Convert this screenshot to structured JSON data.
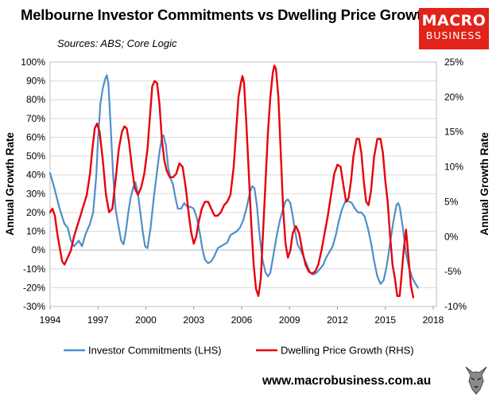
{
  "header": {
    "title": "Melbourne Investor Commitments vs Dwelling Price Growth",
    "subtitle": "Sources: ABS; Core Logic",
    "logo_line1": "MACRO",
    "logo_line2": "BUSINESS"
  },
  "footer": {
    "url": "www.macrobusiness.com.au",
    "logo_icon": "wolf-logo-icon"
  },
  "colors": {
    "investor": "#4f8fc7",
    "price": "#e8000b",
    "logo_bg": "#e2231a",
    "grid": "#d9d9d9"
  },
  "chart_data": {
    "type": "line",
    "title": "Melbourne Investor Commitments vs Dwelling Price Growth",
    "ylabel_left": "Annual Growth Rate",
    "ylabel_right": "Annual Growth Rate",
    "xlim": [
      1994,
      2018.2
    ],
    "ylim_left": [
      -30,
      100
    ],
    "ylim_right": [
      -10,
      25
    ],
    "grid": "horizontal",
    "legend": "bottom",
    "x_ticks": [
      "1994",
      "1997",
      "2000",
      "2003",
      "2006",
      "2009",
      "2012",
      "2015",
      "2018"
    ],
    "y_left_ticks": [
      "100%",
      "90%",
      "80%",
      "70%",
      "60%",
      "50%",
      "40%",
      "30%",
      "20%",
      "10%",
      "0%",
      "-10%",
      "-20%",
      "-30%"
    ],
    "y_right_ticks": [
      "25%",
      "20%",
      "15%",
      "10%",
      "5%",
      "0%",
      "-5%",
      "-10%"
    ],
    "series": [
      {
        "name": "Investor Commitments (LHS)",
        "axis": "left",
        "points": [
          [
            1994.0,
            41
          ],
          [
            1994.3,
            32
          ],
          [
            1994.6,
            22
          ],
          [
            1994.9,
            14
          ],
          [
            1995.1,
            12
          ],
          [
            1995.3,
            5
          ],
          [
            1995.5,
            2
          ],
          [
            1995.8,
            5
          ],
          [
            1996.0,
            2
          ],
          [
            1996.2,
            8
          ],
          [
            1996.5,
            14
          ],
          [
            1996.7,
            20
          ],
          [
            1996.9,
            40
          ],
          [
            1997.0,
            58
          ],
          [
            1997.15,
            78
          ],
          [
            1997.3,
            86
          ],
          [
            1997.45,
            91
          ],
          [
            1997.55,
            93
          ],
          [
            1997.65,
            89
          ],
          [
            1997.8,
            65
          ],
          [
            1997.95,
            40
          ],
          [
            1998.1,
            22
          ],
          [
            1998.3,
            12
          ],
          [
            1998.45,
            5
          ],
          [
            1998.6,
            3
          ],
          [
            1998.75,
            10
          ],
          [
            1998.9,
            20
          ],
          [
            1999.05,
            28
          ],
          [
            1999.2,
            33
          ],
          [
            1999.35,
            36
          ],
          [
            1999.5,
            30
          ],
          [
            1999.65,
            20
          ],
          [
            1999.8,
            10
          ],
          [
            1999.95,
            2
          ],
          [
            2000.1,
            1
          ],
          [
            2000.3,
            12
          ],
          [
            2000.5,
            28
          ],
          [
            2000.7,
            42
          ],
          [
            2000.85,
            52
          ],
          [
            2001.0,
            60
          ],
          [
            2001.1,
            61
          ],
          [
            2001.25,
            56
          ],
          [
            2001.4,
            44
          ],
          [
            2001.55,
            38
          ],
          [
            2001.7,
            35
          ],
          [
            2001.85,
            28
          ],
          [
            2002.0,
            22
          ],
          [
            2002.2,
            22
          ],
          [
            2002.4,
            25
          ],
          [
            2002.6,
            23
          ],
          [
            2002.8,
            23
          ],
          [
            2003.0,
            22
          ],
          [
            2003.2,
            17
          ],
          [
            2003.4,
            8
          ],
          [
            2003.55,
            0
          ],
          [
            2003.7,
            -5
          ],
          [
            2003.9,
            -7
          ],
          [
            2004.1,
            -6
          ],
          [
            2004.3,
            -3
          ],
          [
            2004.5,
            1
          ],
          [
            2004.7,
            2
          ],
          [
            2004.9,
            3
          ],
          [
            2005.1,
            4
          ],
          [
            2005.3,
            8
          ],
          [
            2005.5,
            9
          ],
          [
            2005.7,
            10
          ],
          [
            2005.9,
            12
          ],
          [
            2006.1,
            16
          ],
          [
            2006.3,
            22
          ],
          [
            2006.5,
            30
          ],
          [
            2006.65,
            34
          ],
          [
            2006.8,
            33
          ],
          [
            2006.95,
            24
          ],
          [
            2007.1,
            10
          ],
          [
            2007.3,
            -5
          ],
          [
            2007.5,
            -12
          ],
          [
            2007.65,
            -14
          ],
          [
            2007.8,
            -12
          ],
          [
            2008.0,
            -2
          ],
          [
            2008.2,
            8
          ],
          [
            2008.4,
            16
          ],
          [
            2008.6,
            22
          ],
          [
            2008.75,
            26
          ],
          [
            2008.9,
            27
          ],
          [
            2009.05,
            25
          ],
          [
            2009.2,
            18
          ],
          [
            2009.35,
            10
          ],
          [
            2009.5,
            3
          ],
          [
            2009.7,
            0
          ],
          [
            2009.9,
            -4
          ],
          [
            2010.1,
            -8
          ],
          [
            2010.3,
            -12
          ],
          [
            2010.5,
            -13
          ],
          [
            2010.7,
            -12
          ],
          [
            2010.9,
            -10
          ],
          [
            2011.1,
            -8
          ],
          [
            2011.3,
            -4
          ],
          [
            2011.5,
            -1
          ],
          [
            2011.7,
            2
          ],
          [
            2011.9,
            8
          ],
          [
            2012.1,
            16
          ],
          [
            2012.3,
            22
          ],
          [
            2012.5,
            26
          ],
          [
            2012.7,
            26
          ],
          [
            2012.9,
            25
          ],
          [
            2013.1,
            22
          ],
          [
            2013.3,
            20
          ],
          [
            2013.5,
            20
          ],
          [
            2013.7,
            18
          ],
          [
            2013.9,
            12
          ],
          [
            2014.1,
            4
          ],
          [
            2014.3,
            -6
          ],
          [
            2014.5,
            -14
          ],
          [
            2014.7,
            -18
          ],
          [
            2014.9,
            -16
          ],
          [
            2015.1,
            -8
          ],
          [
            2015.3,
            4
          ],
          [
            2015.5,
            15
          ],
          [
            2015.7,
            24
          ],
          [
            2015.8,
            25
          ],
          [
            2015.9,
            23
          ],
          [
            2016.1,
            12
          ],
          [
            2016.3,
            -2
          ],
          [
            2016.5,
            -10
          ],
          [
            2016.7,
            -15
          ],
          [
            2016.9,
            -18
          ],
          [
            2017.05,
            -20
          ]
        ]
      },
      {
        "name": "Dwelling Price Growth (RHS)",
        "axis": "right",
        "points": [
          [
            1994.0,
            3.5
          ],
          [
            1994.15,
            4.0
          ],
          [
            1994.3,
            3.0
          ],
          [
            1994.45,
            0.5
          ],
          [
            1994.6,
            -1.5
          ],
          [
            1994.75,
            -3.5
          ],
          [
            1994.9,
            -4.0
          ],
          [
            1995.1,
            -3.0
          ],
          [
            1995.3,
            -2.0
          ],
          [
            1995.5,
            0.0
          ],
          [
            1995.7,
            1.5
          ],
          [
            1995.9,
            3.0
          ],
          [
            1996.1,
            4.5
          ],
          [
            1996.3,
            6.0
          ],
          [
            1996.5,
            9.0
          ],
          [
            1996.65,
            12.5
          ],
          [
            1996.8,
            15.5
          ],
          [
            1996.95,
            16.2
          ],
          [
            1997.1,
            15.0
          ],
          [
            1997.3,
            11.0
          ],
          [
            1997.5,
            6.0
          ],
          [
            1997.7,
            3.5
          ],
          [
            1997.9,
            4.0
          ],
          [
            1998.1,
            8.0
          ],
          [
            1998.3,
            12.5
          ],
          [
            1998.5,
            15.0
          ],
          [
            1998.65,
            15.8
          ],
          [
            1998.8,
            15.5
          ],
          [
            1998.95,
            13.5
          ],
          [
            1999.1,
            10.5
          ],
          [
            1999.3,
            7.0
          ],
          [
            1999.5,
            6.0
          ],
          [
            1999.7,
            7.0
          ],
          [
            1999.9,
            9.0
          ],
          [
            2000.1,
            12.5
          ],
          [
            2000.25,
            17.0
          ],
          [
            2000.4,
            21.5
          ],
          [
            2000.55,
            22.3
          ],
          [
            2000.7,
            22.0
          ],
          [
            2000.85,
            19.0
          ],
          [
            2001.0,
            14.0
          ],
          [
            2001.15,
            11.0
          ],
          [
            2001.3,
            9.5
          ],
          [
            2001.5,
            8.5
          ],
          [
            2001.7,
            8.5
          ],
          [
            2001.9,
            9.0
          ],
          [
            2002.1,
            10.5
          ],
          [
            2002.3,
            10.0
          ],
          [
            2002.5,
            7.0
          ],
          [
            2002.7,
            3.0
          ],
          [
            2002.85,
            0.5
          ],
          [
            2003.0,
            -1.0
          ],
          [
            2003.15,
            0.0
          ],
          [
            2003.3,
            2.0
          ],
          [
            2003.5,
            4.0
          ],
          [
            2003.7,
            5.0
          ],
          [
            2003.9,
            5.0
          ],
          [
            2004.1,
            4.0
          ],
          [
            2004.3,
            3.0
          ],
          [
            2004.5,
            3.0
          ],
          [
            2004.7,
            3.5
          ],
          [
            2004.9,
            4.5
          ],
          [
            2005.1,
            5.0
          ],
          [
            2005.3,
            6.0
          ],
          [
            2005.5,
            10.0
          ],
          [
            2005.65,
            15.0
          ],
          [
            2005.8,
            20.0
          ],
          [
            2005.95,
            22.0
          ],
          [
            2006.05,
            23.0
          ],
          [
            2006.15,
            22.0
          ],
          [
            2006.3,
            16.0
          ],
          [
            2006.45,
            9.0
          ],
          [
            2006.6,
            2.0
          ],
          [
            2006.75,
            -4.0
          ],
          [
            2006.9,
            -7.5
          ],
          [
            2007.05,
            -8.5
          ],
          [
            2007.2,
            -6.0
          ],
          [
            2007.35,
            1.0
          ],
          [
            2007.5,
            8.0
          ],
          [
            2007.65,
            15.0
          ],
          [
            2007.8,
            20.0
          ],
          [
            2007.95,
            23.5
          ],
          [
            2008.05,
            24.5
          ],
          [
            2008.15,
            24.0
          ],
          [
            2008.3,
            20.0
          ],
          [
            2008.45,
            12.0
          ],
          [
            2008.6,
            4.0
          ],
          [
            2008.75,
            -1.0
          ],
          [
            2008.9,
            -3.0
          ],
          [
            2009.05,
            -2.0
          ],
          [
            2009.2,
            0.5
          ],
          [
            2009.4,
            1.5
          ],
          [
            2009.6,
            0.5
          ],
          [
            2009.8,
            -2.0
          ],
          [
            2010.0,
            -4.0
          ],
          [
            2010.2,
            -5.0
          ],
          [
            2010.4,
            -5.3
          ],
          [
            2010.6,
            -5.0
          ],
          [
            2010.8,
            -4.0
          ],
          [
            2011.0,
            -2.0
          ],
          [
            2011.2,
            0.5
          ],
          [
            2011.4,
            3.0
          ],
          [
            2011.6,
            6.0
          ],
          [
            2011.8,
            9.0
          ],
          [
            2012.0,
            10.3
          ],
          [
            2012.2,
            10.0
          ],
          [
            2012.4,
            7.0
          ],
          [
            2012.55,
            5.0
          ],
          [
            2012.7,
            5.5
          ],
          [
            2012.85,
            8.0
          ],
          [
            2013.0,
            11.5
          ],
          [
            2013.2,
            14.0
          ],
          [
            2013.35,
            14.0
          ],
          [
            2013.5,
            12.0
          ],
          [
            2013.65,
            8.0
          ],
          [
            2013.8,
            5.0
          ],
          [
            2013.95,
            4.5
          ],
          [
            2014.1,
            6.5
          ],
          [
            2014.3,
            11.5
          ],
          [
            2014.5,
            14.0
          ],
          [
            2014.7,
            14.0
          ],
          [
            2014.85,
            12.0
          ],
          [
            2015.0,
            8.0
          ],
          [
            2015.15,
            5.0
          ],
          [
            2015.3,
            0.0
          ],
          [
            2015.45,
            -4.0
          ],
          [
            2015.6,
            -6.0
          ],
          [
            2015.75,
            -8.5
          ],
          [
            2015.9,
            -8.5
          ],
          [
            2016.0,
            -6.0
          ],
          [
            2016.15,
            -2.0
          ],
          [
            2016.3,
            1.0
          ],
          [
            2016.45,
            -3.0
          ],
          [
            2016.6,
            -7.0
          ],
          [
            2016.75,
            -8.7
          ]
        ]
      }
    ]
  }
}
